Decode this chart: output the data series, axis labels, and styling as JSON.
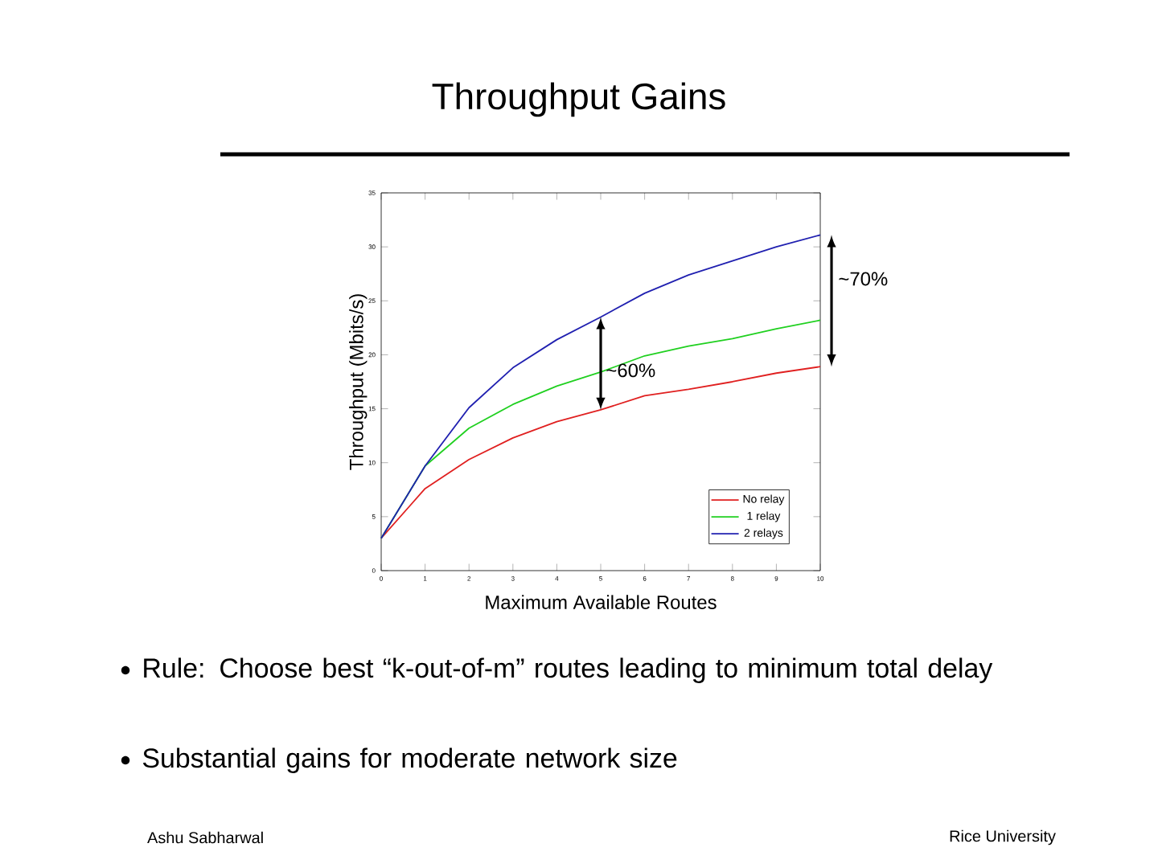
{
  "chart_data": {
    "type": "line",
    "title": "Throughput Gains",
    "xlabel": "Maximum Available Routes",
    "ylabel": "Throughput (Mbits/s)",
    "x": [
      0,
      1,
      2,
      3,
      4,
      5,
      6,
      7,
      8,
      9,
      10
    ],
    "series": [
      {
        "name": "No relay",
        "color": "#e02020",
        "values": [
          3.0,
          7.6,
          10.3,
          12.3,
          13.8,
          14.9,
          16.2,
          16.8,
          17.5,
          18.3,
          18.9
        ]
      },
      {
        "name": "1 relay",
        "color": "#20d020",
        "values": [
          3.0,
          9.7,
          13.2,
          15.4,
          17.1,
          18.4,
          19.9,
          20.8,
          21.5,
          22.4,
          23.2
        ]
      },
      {
        "name": "2 relays",
        "color": "#2020b0",
        "values": [
          3.0,
          9.7,
          15.1,
          18.8,
          21.4,
          23.5,
          25.7,
          27.4,
          28.7,
          30.0,
          31.1
        ]
      }
    ],
    "xlim": [
      0,
      10
    ],
    "xticks": [
      0,
      1,
      2,
      3,
      4,
      5,
      6,
      7,
      8,
      9,
      10
    ],
    "ylim": [
      0,
      35
    ],
    "yticks": [
      0,
      5,
      10,
      15,
      20,
      25,
      30,
      35
    ],
    "grid": false,
    "legend": "bottom right",
    "marker": "none",
    "line_style": "solid",
    "annotations": [
      {
        "text": "~60%",
        "x": 5,
        "y": 19
      },
      "~70%",
      "Rule: Choose best “k-out-of-m” routes leading to minimum total delay",
      "Substantial gains for moderate network size",
      "Ashu Sabharwal",
      "Rice University"
    ]
  }
}
